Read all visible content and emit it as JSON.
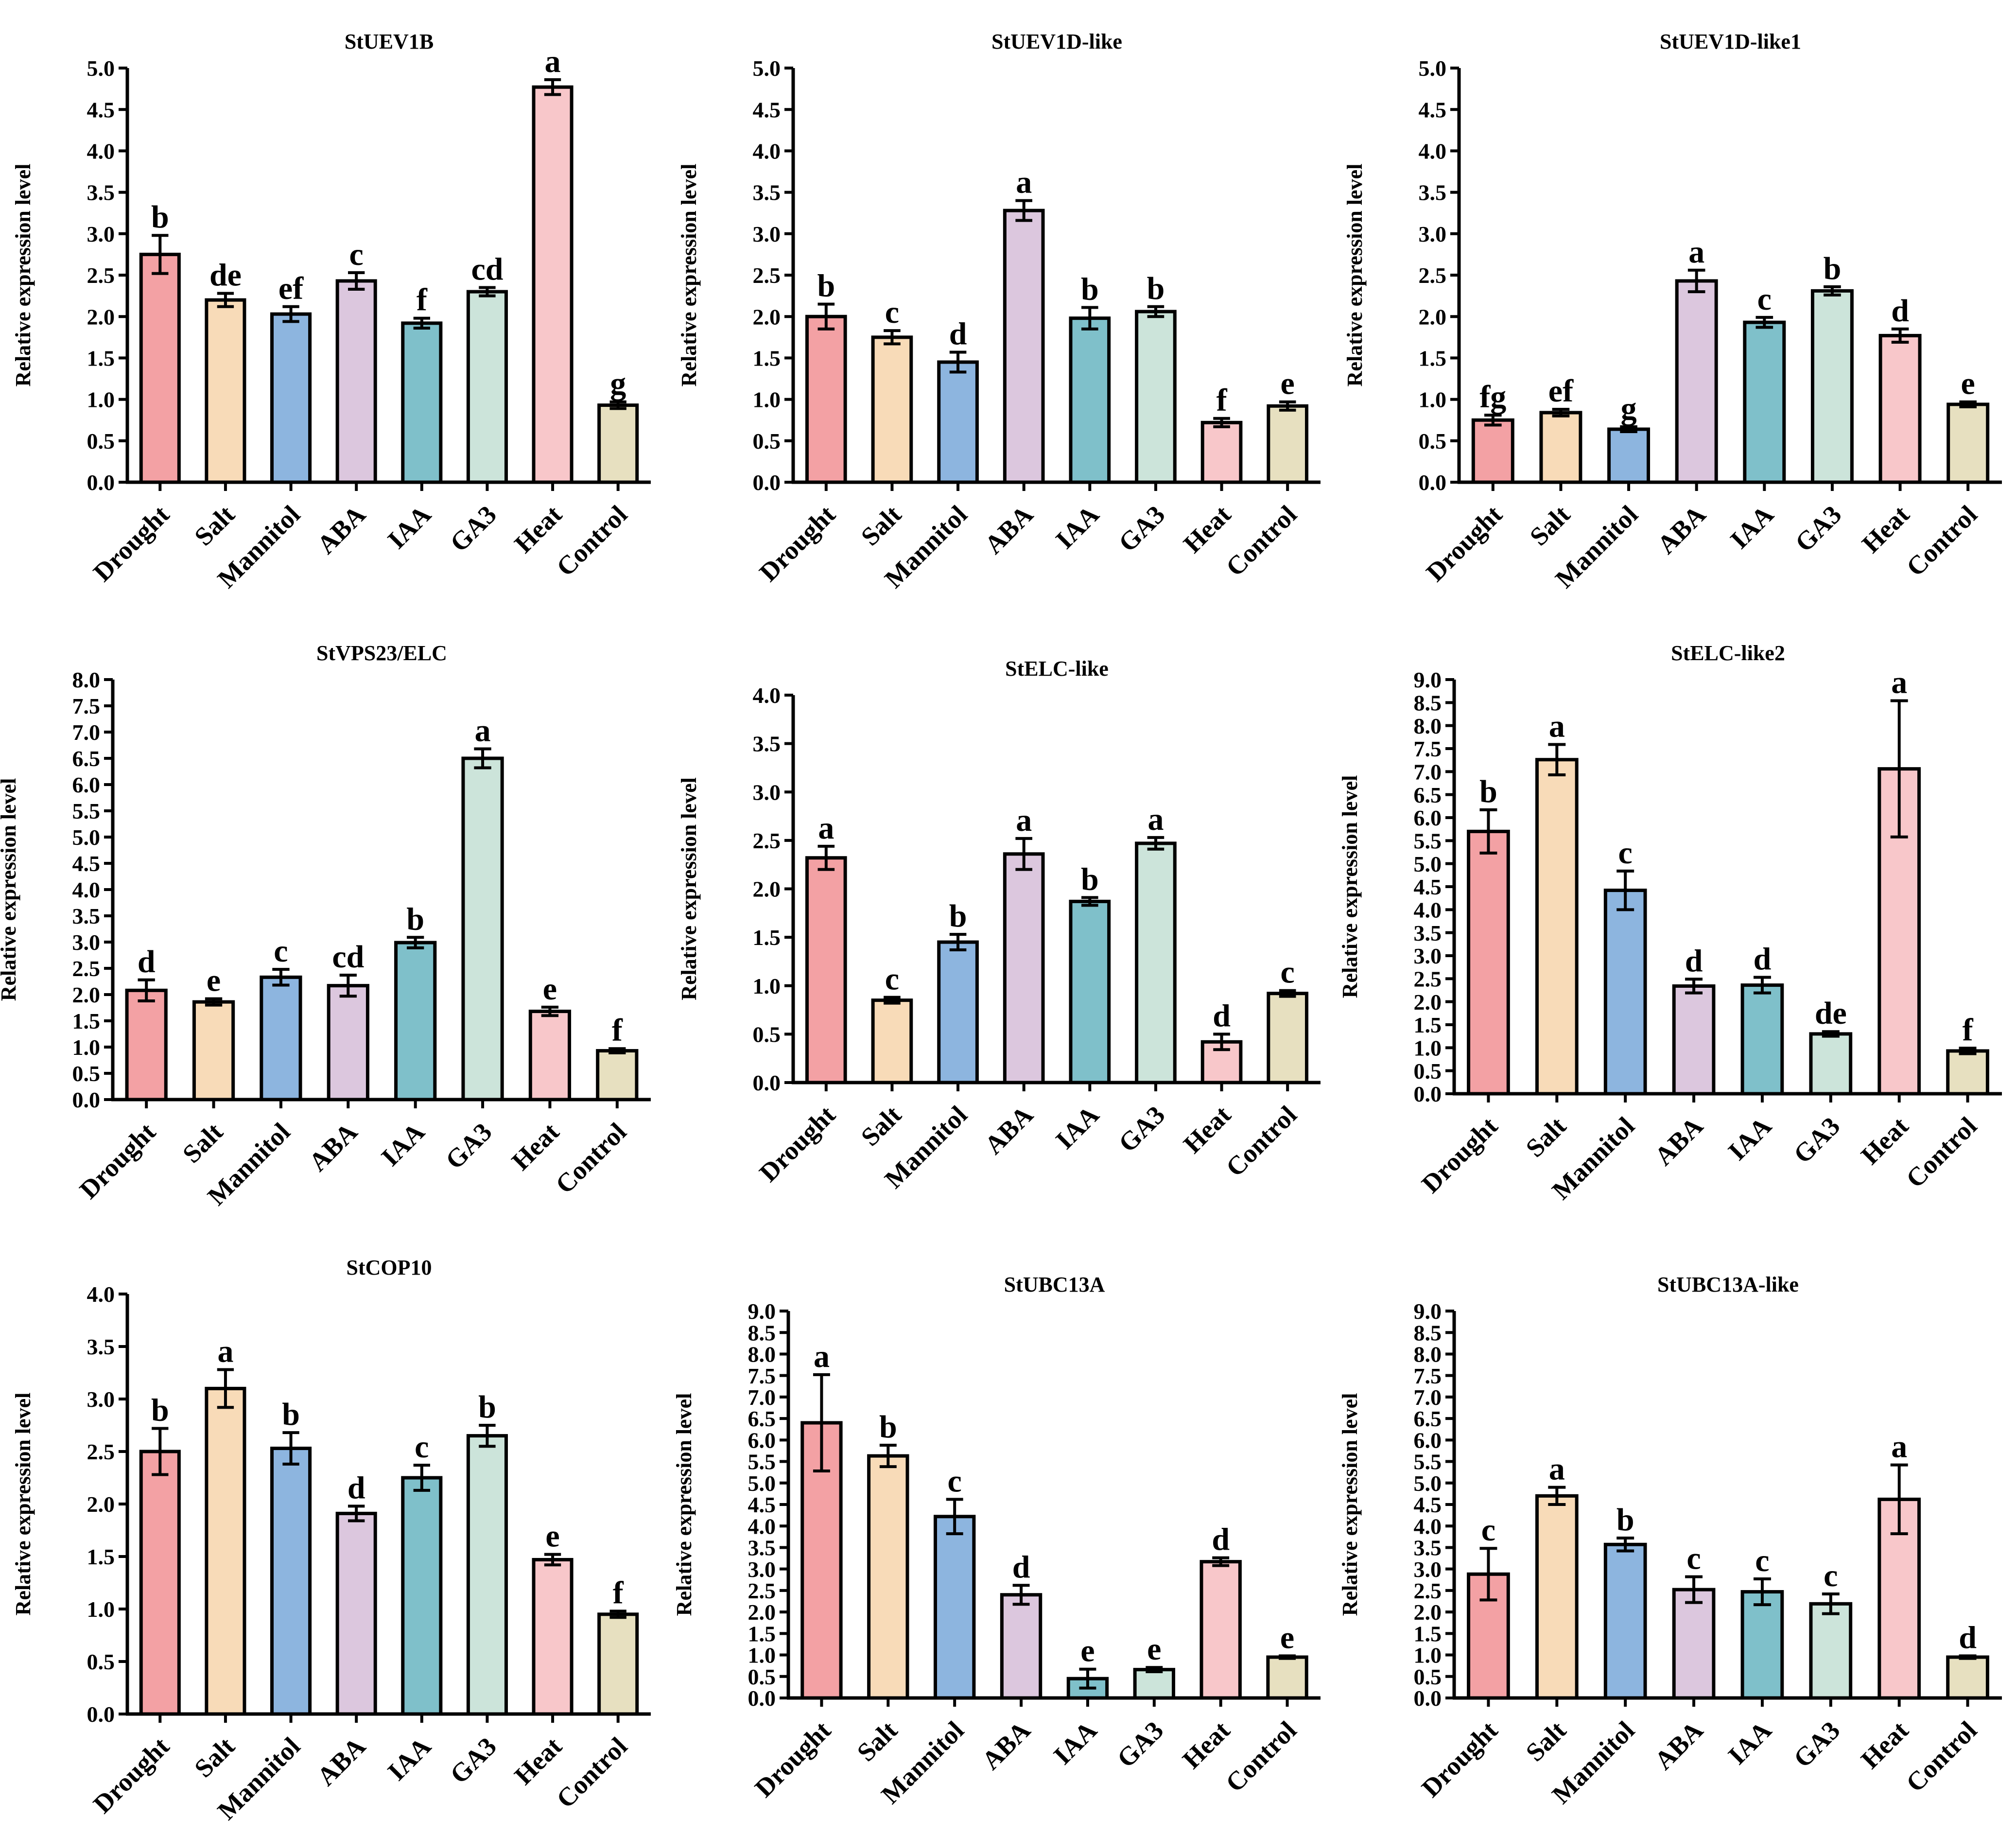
{
  "figure": {
    "ylabel": "Relative expression level"
  },
  "colors": [
    "#F3A1A4",
    "#F8DBB8",
    "#8DB5DF",
    "#DCC7DE",
    "#7FC0CA",
    "#CCE4DA",
    "#F8C7CA",
    "#E7E0C0"
  ],
  "chart_data": [
    {
      "type": "bar",
      "title": "StUEV1B",
      "categories": [
        "Drought",
        "Salt",
        "Mannitol",
        "ABA",
        "IAA",
        "GA3",
        "Heat",
        "Control"
      ],
      "values": [
        2.75,
        2.2,
        2.03,
        2.43,
        1.92,
        2.3,
        4.77,
        0.93
      ],
      "errors": [
        0.23,
        0.08,
        0.09,
        0.1,
        0.06,
        0.05,
        0.09,
        0.04
      ],
      "labels": [
        "b",
        "de",
        "ef",
        "c",
        "f",
        "cd",
        "a",
        "g"
      ],
      "ylim": [
        0,
        5
      ],
      "step": 0.5,
      "ylabel": "Relative expression level"
    },
    {
      "type": "bar",
      "title": "StUEV1D-like",
      "categories": [
        "Drought",
        "Salt",
        "Mannitol",
        "ABA",
        "IAA",
        "GA3",
        "Heat",
        "Control"
      ],
      "values": [
        2.0,
        1.75,
        1.45,
        3.28,
        1.98,
        2.06,
        0.72,
        0.92
      ],
      "errors": [
        0.15,
        0.08,
        0.12,
        0.12,
        0.13,
        0.06,
        0.05,
        0.05
      ],
      "labels": [
        "b",
        "c",
        "d",
        "a",
        "b",
        "b",
        "f",
        "e"
      ],
      "ylim": [
        0,
        5
      ],
      "step": 0.5,
      "ylabel": "Relative expression level"
    },
    {
      "type": "bar",
      "title": "StUEV1D-like1",
      "categories": [
        "Drought",
        "Salt",
        "Mannitol",
        "ABA",
        "IAA",
        "GA3",
        "Heat",
        "Control"
      ],
      "values": [
        0.75,
        0.84,
        0.64,
        2.43,
        1.93,
        2.31,
        1.77,
        0.94
      ],
      "errors": [
        0.06,
        0.04,
        0.03,
        0.13,
        0.06,
        0.05,
        0.08,
        0.03
      ],
      "labels": [
        "fg",
        "ef",
        "g",
        "a",
        "c",
        "b",
        "d",
        "e"
      ],
      "ylim": [
        0,
        5
      ],
      "step": 0.5,
      "ylabel": "Relative expression level"
    },
    {
      "type": "bar",
      "title": "StVPS23/ELC",
      "categories": [
        "Drought",
        "Salt",
        "Mannitol",
        "ABA",
        "IAA",
        "GA3",
        "Heat",
        "Control"
      ],
      "values": [
        2.08,
        1.86,
        2.33,
        2.17,
        2.99,
        6.5,
        1.68,
        0.93
      ],
      "errors": [
        0.2,
        0.06,
        0.15,
        0.2,
        0.1,
        0.18,
        0.08,
        0.04
      ],
      "labels": [
        "d",
        "e",
        "c",
        "cd",
        "b",
        "a",
        "e",
        "f"
      ],
      "ylim": [
        0,
        8
      ],
      "step": 0.5,
      "ylabel": "Relative expression level"
    },
    {
      "type": "bar",
      "title": "StELC-like",
      "categories": [
        "Drought",
        "Salt",
        "Mannitol",
        "ABA",
        "IAA",
        "GA3",
        "Heat",
        "Control"
      ],
      "values": [
        2.32,
        0.85,
        1.45,
        2.36,
        1.87,
        2.47,
        0.42,
        0.92
      ],
      "errors": [
        0.12,
        0.03,
        0.08,
        0.16,
        0.04,
        0.06,
        0.08,
        0.03
      ],
      "labels": [
        "a",
        "c",
        "b",
        "a",
        "b",
        "a",
        "d",
        "c"
      ],
      "ylim": [
        0,
        4
      ],
      "step": 0.5,
      "ylabel": "Relative expression level"
    },
    {
      "type": "bar",
      "title": "StELC-like2",
      "categories": [
        "Drought",
        "Salt",
        "Mannitol",
        "ABA",
        "IAA",
        "GA3",
        "Heat",
        "Control"
      ],
      "values": [
        5.7,
        7.26,
        4.42,
        2.34,
        2.36,
        1.3,
        7.06,
        0.93
      ],
      "errors": [
        0.47,
        0.33,
        0.42,
        0.15,
        0.17,
        0.05,
        1.48,
        0.06
      ],
      "labels": [
        "b",
        "a",
        "c",
        "d",
        "d",
        "de",
        "a",
        "f"
      ],
      "ylim": [
        0,
        9
      ],
      "step": 0.5,
      "ylabel": "Relative expression level"
    },
    {
      "type": "bar",
      "title": "StCOP10",
      "categories": [
        "Drought",
        "Salt",
        "Mannitol",
        "ABA",
        "IAA",
        "GA3",
        "Heat",
        "Control"
      ],
      "values": [
        2.5,
        3.1,
        2.53,
        1.91,
        2.25,
        2.65,
        1.47,
        0.95
      ],
      "errors": [
        0.22,
        0.18,
        0.15,
        0.07,
        0.12,
        0.1,
        0.05,
        0.03
      ],
      "labels": [
        "b",
        "a",
        "b",
        "d",
        "c",
        "b",
        "e",
        "f"
      ],
      "ylim": [
        0,
        4
      ],
      "step": 0.5,
      "ylabel": "Relative expression level"
    },
    {
      "type": "bar",
      "title": "StUBC13A",
      "categories": [
        "Drought",
        "Salt",
        "Mannitol",
        "ABA",
        "IAA",
        "GA3",
        "Heat",
        "Control"
      ],
      "values": [
        6.4,
        5.63,
        4.22,
        2.4,
        0.45,
        0.66,
        3.17,
        0.95
      ],
      "errors": [
        1.12,
        0.25,
        0.4,
        0.22,
        0.22,
        0.05,
        0.09,
        0.03
      ],
      "labels": [
        "a",
        "b",
        "c",
        "d",
        "e",
        "e",
        "d",
        "e"
      ],
      "ylim": [
        0,
        9
      ],
      "step": 0.5,
      "ylabel": "Relative expression level"
    },
    {
      "type": "bar",
      "title": "StUBC13A-like",
      "categories": [
        "Drought",
        "Salt",
        "Mannitol",
        "ABA",
        "IAA",
        "GA3",
        "Heat",
        "Control"
      ],
      "values": [
        2.88,
        4.7,
        3.57,
        2.52,
        2.47,
        2.19,
        4.62,
        0.95
      ],
      "errors": [
        0.6,
        0.2,
        0.15,
        0.3,
        0.3,
        0.23,
        0.8,
        0.03
      ],
      "labels": [
        "c",
        "a",
        "b",
        "c",
        "c",
        "c",
        "a",
        "d"
      ],
      "ylim": [
        0,
        9
      ],
      "step": 0.5,
      "ylabel": "Relative expression level"
    }
  ]
}
